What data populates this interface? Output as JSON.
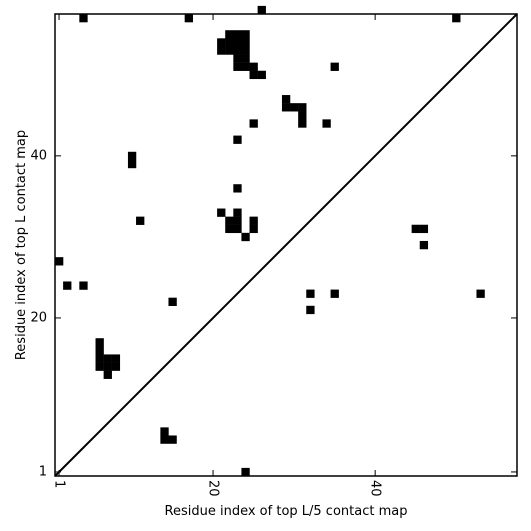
{
  "chart_data": {
    "type": "heatmap",
    "title": "",
    "xlabel": "Residue index of top L/5 contact map",
    "ylabel": "Residue index of top L contact map",
    "xlim": [
      0.5,
      57.5
    ],
    "ylim": [
      0.5,
      57.5
    ],
    "xticks": [
      1,
      20,
      40
    ],
    "yticks": [
      1,
      20,
      40
    ],
    "colors": {
      "cell": "#000000",
      "background": "#ffffff",
      "diagonal": "#000000"
    },
    "diagonal": true,
    "cells": [
      [
        4,
        57
      ],
      [
        17,
        57
      ],
      [
        26,
        58
      ],
      [
        50,
        57
      ],
      [
        22,
        55
      ],
      [
        23,
        55
      ],
      [
        24,
        55
      ],
      [
        21,
        54
      ],
      [
        22,
        54
      ],
      [
        23,
        54
      ],
      [
        24,
        54
      ],
      [
        21,
        53
      ],
      [
        22,
        53
      ],
      [
        23,
        53
      ],
      [
        24,
        53
      ],
      [
        23,
        52
      ],
      [
        24,
        52
      ],
      [
        23,
        51
      ],
      [
        24,
        51
      ],
      [
        25,
        51
      ],
      [
        25,
        50
      ],
      [
        26,
        50
      ],
      [
        35,
        51
      ],
      [
        29,
        47
      ],
      [
        29,
        46
      ],
      [
        30,
        46
      ],
      [
        31,
        46
      ],
      [
        31,
        45
      ],
      [
        31,
        44
      ],
      [
        25,
        44
      ],
      [
        34,
        44
      ],
      [
        23,
        42
      ],
      [
        10,
        40
      ],
      [
        10,
        39
      ],
      [
        23,
        36
      ],
      [
        21,
        33
      ],
      [
        23,
        33
      ],
      [
        22,
        32
      ],
      [
        23,
        32
      ],
      [
        25,
        32
      ],
      [
        22,
        31
      ],
      [
        23,
        31
      ],
      [
        25,
        31
      ],
      [
        24,
        30
      ],
      [
        45,
        31
      ],
      [
        46,
        31
      ],
      [
        46,
        29
      ],
      [
        1,
        27
      ],
      [
        2,
        24
      ],
      [
        4,
        24
      ],
      [
        32,
        23
      ],
      [
        35,
        23
      ],
      [
        53,
        23
      ],
      [
        15,
        22
      ],
      [
        32,
        21
      ],
      [
        6,
        17
      ],
      [
        6,
        16
      ],
      [
        6,
        15
      ],
      [
        7,
        15
      ],
      [
        8,
        15
      ],
      [
        6,
        14
      ],
      [
        7,
        14
      ],
      [
        8,
        14
      ],
      [
        7,
        13
      ],
      [
        14,
        6
      ],
      [
        14,
        5
      ],
      [
        15,
        5
      ],
      [
        24,
        1
      ],
      [
        11,
        32
      ]
    ]
  }
}
